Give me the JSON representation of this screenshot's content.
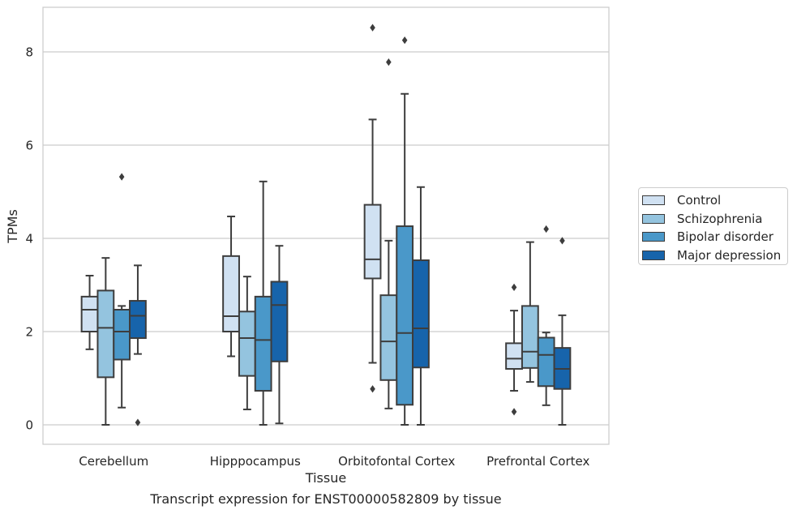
{
  "chart_data": {
    "type": "box",
    "title": "",
    "xlabel": "Tissue",
    "ylabel": "TPMs",
    "caption": "Transcript expression for ENST00000582809 by tissue",
    "ylim": [
      -0.4,
      8.9
    ],
    "yticks": [
      0,
      2,
      4,
      6,
      8
    ],
    "grid": "horizontal",
    "legend_position": "right",
    "categories": [
      "Cerebellum",
      "Hipppocampus",
      "Orbitofontal Cortex",
      "Prefrontal Cortex"
    ],
    "series": [
      {
        "name": "Control",
        "color": "#d0e1f2",
        "boxes": [
          {
            "whislo": 1.62,
            "q1": 2.0,
            "med": 2.47,
            "q3": 2.75,
            "whishi": 3.2,
            "fliers": []
          },
          {
            "whislo": 1.47,
            "q1": 2.0,
            "med": 2.33,
            "q3": 3.62,
            "whishi": 4.47,
            "fliers": []
          },
          {
            "whislo": 1.33,
            "q1": 3.14,
            "med": 3.55,
            "q3": 4.72,
            "whishi": 6.55,
            "fliers": [
              8.52,
              0.77
            ]
          },
          {
            "whislo": 0.73,
            "q1": 1.2,
            "med": 1.42,
            "q3": 1.75,
            "whishi": 2.45,
            "fliers": [
              2.95,
              0.28
            ]
          }
        ]
      },
      {
        "name": "Schizophrenia",
        "color": "#94c4df",
        "boxes": [
          {
            "whislo": 0.0,
            "q1": 1.02,
            "med": 2.08,
            "q3": 2.88,
            "whishi": 3.58,
            "fliers": []
          },
          {
            "whislo": 0.33,
            "q1": 1.05,
            "med": 1.86,
            "q3": 2.43,
            "whishi": 3.18,
            "fliers": []
          },
          {
            "whislo": 0.35,
            "q1": 0.96,
            "med": 1.79,
            "q3": 2.78,
            "whishi": 3.95,
            "fliers": [
              7.78
            ]
          },
          {
            "whislo": 0.92,
            "q1": 1.22,
            "med": 1.57,
            "q3": 2.55,
            "whishi": 3.92,
            "fliers": []
          }
        ]
      },
      {
        "name": "Bipolar disorder",
        "color": "#4a98c9",
        "boxes": [
          {
            "whislo": 0.37,
            "q1": 1.4,
            "med": 2.0,
            "q3": 2.47,
            "whishi": 2.55,
            "fliers": [
              5.32
            ]
          },
          {
            "whislo": 0.0,
            "q1": 0.73,
            "med": 1.82,
            "q3": 2.75,
            "whishi": 5.22,
            "fliers": []
          },
          {
            "whislo": 0.0,
            "q1": 0.43,
            "med": 1.97,
            "q3": 4.26,
            "whishi": 7.1,
            "fliers": [
              8.25
            ]
          },
          {
            "whislo": 0.42,
            "q1": 0.83,
            "med": 1.5,
            "q3": 1.87,
            "whishi": 1.98,
            "fliers": [
              4.2
            ]
          }
        ]
      },
      {
        "name": "Major depression",
        "color": "#1764ab",
        "boxes": [
          {
            "whislo": 1.52,
            "q1": 1.86,
            "med": 2.34,
            "q3": 2.66,
            "whishi": 3.42,
            "fliers": [
              0.05
            ]
          },
          {
            "whislo": 0.03,
            "q1": 1.36,
            "med": 2.57,
            "q3": 3.07,
            "whishi": 3.84,
            "fliers": []
          },
          {
            "whislo": 0.0,
            "q1": 1.23,
            "med": 2.07,
            "q3": 3.53,
            "whishi": 5.1,
            "fliers": []
          },
          {
            "whislo": 0.0,
            "q1": 0.77,
            "med": 1.2,
            "q3": 1.65,
            "whishi": 2.35,
            "fliers": [
              3.95
            ]
          }
        ]
      }
    ]
  }
}
